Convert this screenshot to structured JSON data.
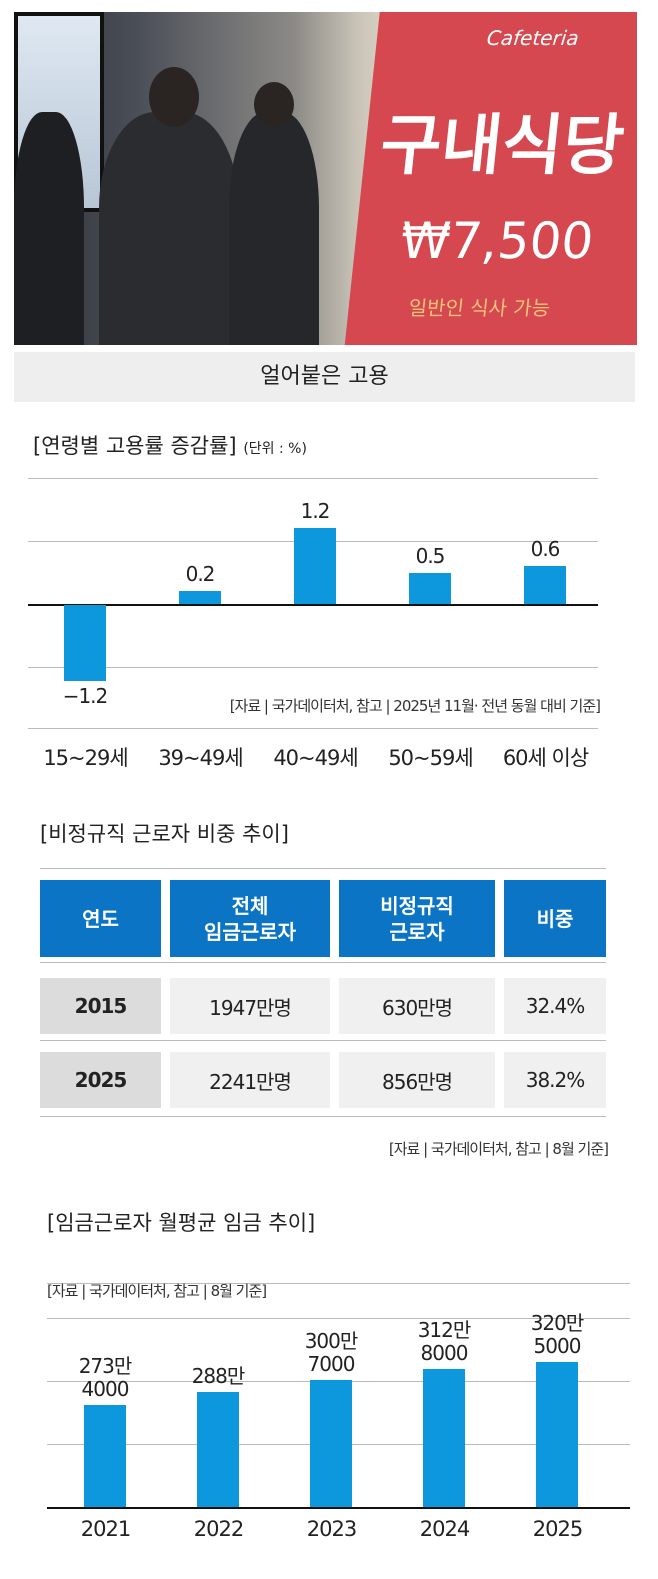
{
  "photo": {
    "sign_top": "Cafeteria",
    "sign_main": "구내식당",
    "sign_price": "₩7,500",
    "sign_sub": "일반인 식사 가능"
  },
  "caption": "얼어붙은 고용",
  "chart_data": [
    {
      "type": "bar",
      "title": "[연령별 고용률 증감률]",
      "unit": "(단위 : %)",
      "categories": [
        "15~29세",
        "39~49세",
        "40~49세",
        "50~59세",
        "60세 이상"
      ],
      "values": [
        -1.2,
        0.2,
        1.2,
        0.5,
        0.6
      ],
      "value_labels": [
        "−1.2",
        "0.2",
        "1.2",
        "0.5",
        "0.6"
      ],
      "source": "[자료 | 국가데이터처, 참고 | 2025년 11월· 전년 동월 대비 기준]",
      "grid": true,
      "color": "#0d97dd"
    },
    {
      "type": "table",
      "title": "[비정규직 근로자 비중 추이]",
      "headers": [
        "연도",
        "전체\n임금근로자",
        "비정규직\n근로자",
        "비중"
      ],
      "rows": [
        [
          "2015",
          "1947만명",
          "630만명",
          "32.4%"
        ],
        [
          "2025",
          "2241만명",
          "856만명",
          "38.2%"
        ]
      ],
      "source": "[자료 | 국가데이터처, 참고 | 8월 기준]",
      "header_color": "#0b74c4"
    },
    {
      "type": "bar",
      "title": "[임금근로자 월평균 임금 추이]",
      "source": "[자료 | 국가데이터처, 참고 | 8월 기준]",
      "categories": [
        "2021",
        "2022",
        "2023",
        "2024",
        "2025"
      ],
      "values": [
        2734000,
        2880000,
        3007000,
        3128000,
        3205000
      ],
      "value_labels": [
        [
          "273만",
          "4000"
        ],
        [
          "288만",
          ""
        ],
        [
          "300만",
          "7000"
        ],
        [
          "312만",
          "8000"
        ],
        [
          "320만",
          "5000"
        ]
      ],
      "grid": true,
      "color": "#0d97dd"
    }
  ]
}
